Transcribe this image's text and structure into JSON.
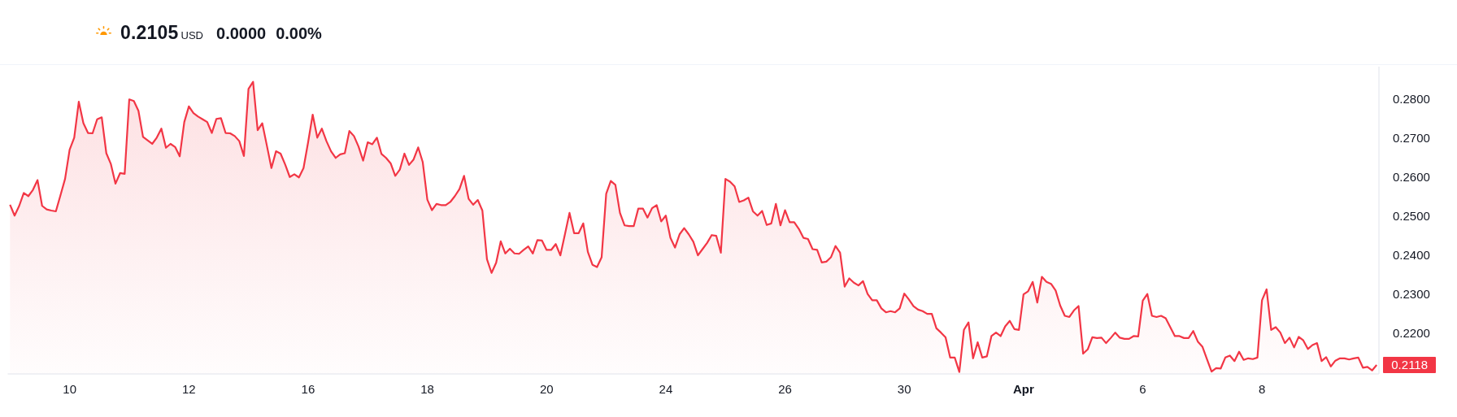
{
  "chart_data": {
    "type": "area",
    "title": "0.2105",
    "annotations": [
      "USD",
      "0.0000",
      "0.00%"
    ],
    "categories": [
      null,
      null,
      null,
      null,
      null,
      null,
      null,
      null,
      null,
      null,
      null,
      null,
      null,
      "10",
      null,
      null,
      null,
      null,
      null,
      null,
      null,
      null,
      null,
      null,
      null,
      null,
      null,
      null,
      null,
      null,
      null,
      null,
      null,
      null,
      null,
      null,
      null,
      null,
      null,
      "12",
      null,
      null,
      null,
      null,
      null,
      null,
      null,
      null,
      null,
      null,
      null,
      null,
      null,
      null,
      null,
      null,
      null,
      null,
      null,
      null,
      null,
      null,
      null,
      null,
      null,
      "16",
      null,
      null,
      null,
      null,
      null,
      null,
      null,
      null,
      null,
      null,
      null,
      null,
      null,
      null,
      null,
      null,
      null,
      null,
      null,
      null,
      null,
      null,
      null,
      null,
      null,
      "18",
      null,
      null,
      null,
      null,
      null,
      null,
      null,
      null,
      null,
      null,
      null,
      null,
      null,
      null,
      null,
      null,
      null,
      null,
      null,
      null,
      null,
      null,
      null,
      null,
      null,
      "20",
      null,
      null,
      null,
      null,
      null,
      null,
      null,
      null,
      null,
      null,
      null,
      null,
      null,
      null,
      null,
      null,
      null,
      null,
      null,
      null,
      null,
      null,
      null,
      null,
      null,
      "24",
      null,
      null,
      null,
      null,
      null,
      null,
      null,
      null,
      null,
      null,
      null,
      null,
      null,
      null,
      null,
      null,
      null,
      null,
      null,
      null,
      null,
      null,
      null,
      null,
      null,
      "26",
      null,
      null,
      null,
      null,
      null,
      null,
      null,
      null,
      null,
      null,
      null,
      null,
      null,
      null,
      null,
      null,
      null,
      null,
      null,
      null,
      null,
      null,
      null,
      null,
      null,
      "30",
      null,
      null,
      null,
      null,
      null,
      null,
      null,
      null,
      null,
      null,
      null,
      null,
      null,
      null,
      null,
      null,
      null,
      null,
      null,
      null,
      null,
      null,
      null,
      null,
      null,
      "Apr",
      null,
      null,
      null,
      null,
      null,
      null,
      null,
      null,
      null,
      null,
      null,
      null,
      null,
      null,
      null,
      null,
      null,
      null,
      null,
      null,
      null,
      null,
      null,
      null,
      null,
      "6",
      null,
      null,
      null,
      null,
      null,
      null,
      null,
      null,
      null,
      null,
      null,
      null,
      null,
      null,
      null,
      null,
      null,
      null,
      null,
      null,
      null,
      null,
      null,
      null,
      null,
      "8",
      null,
      null,
      null,
      null,
      null,
      null,
      null,
      null,
      null,
      null,
      null,
      null,
      null,
      null,
      null,
      null,
      null,
      null,
      null,
      null,
      null,
      null,
      null,
      null,
      null
    ],
    "series": [
      {
        "color": "#f23645",
        "values": [
          0.2529,
          0.2501,
          0.2526,
          0.2559,
          0.2551,
          0.2567,
          0.2592,
          0.2526,
          0.2517,
          0.2514,
          0.2512,
          0.2553,
          0.2595,
          0.267,
          0.2701,
          0.2793,
          0.2738,
          0.2713,
          0.2712,
          0.2748,
          0.2753,
          0.2661,
          0.2633,
          0.2583,
          0.261,
          0.2608,
          0.2799,
          0.2795,
          0.277,
          0.2703,
          0.2694,
          0.2685,
          0.2701,
          0.2724,
          0.2675,
          0.2685,
          0.2677,
          0.2653,
          0.2741,
          0.2781,
          0.2764,
          0.2755,
          0.2748,
          0.2741,
          0.2713,
          0.2749,
          0.2751,
          0.2713,
          0.2712,
          0.2705,
          0.2692,
          0.2654,
          0.2826,
          0.2844,
          0.272,
          0.2738,
          0.2681,
          0.2623,
          0.2666,
          0.266,
          0.2632,
          0.26,
          0.2607,
          0.2599,
          0.2623,
          0.2689,
          0.276,
          0.2701,
          0.2724,
          0.2692,
          0.2666,
          0.2649,
          0.2658,
          0.2661,
          0.2718,
          0.2705,
          0.2678,
          0.2642,
          0.2689,
          0.2684,
          0.2701,
          0.2659,
          0.2649,
          0.2635,
          0.2603,
          0.2619,
          0.266,
          0.2631,
          0.2645,
          0.2676,
          0.2638,
          0.2542,
          0.2515,
          0.2531,
          0.2528,
          0.2528,
          0.2536,
          0.2551,
          0.2569,
          0.2603,
          0.2544,
          0.2529,
          0.2541,
          0.2514,
          0.2389,
          0.2354,
          0.238,
          0.2435,
          0.2404,
          0.2416,
          0.2404,
          0.2403,
          0.2413,
          0.2422,
          0.2404,
          0.2438,
          0.2437,
          0.2413,
          0.2413,
          0.2428,
          0.2399,
          0.2453,
          0.2508,
          0.2456,
          0.2456,
          0.2481,
          0.2408,
          0.2375,
          0.2369,
          0.2394,
          0.2557,
          0.259,
          0.258,
          0.2508,
          0.2476,
          0.2474,
          0.2474,
          0.2519,
          0.2519,
          0.2496,
          0.252,
          0.2528,
          0.2486,
          0.2501,
          0.2444,
          0.2419,
          0.2453,
          0.2469,
          0.2453,
          0.2434,
          0.2399,
          0.2415,
          0.2431,
          0.2451,
          0.2449,
          0.2406,
          0.2595,
          0.2588,
          0.2576,
          0.2536,
          0.254,
          0.2547,
          0.2512,
          0.2501,
          0.2513,
          0.2477,
          0.2481,
          0.2531,
          0.2476,
          0.2515,
          0.2484,
          0.2484,
          0.2467,
          0.2444,
          0.2441,
          0.2415,
          0.2413,
          0.2381,
          0.2383,
          0.2394,
          0.2423,
          0.2406,
          0.2319,
          0.234,
          0.2329,
          0.2322,
          0.2333,
          0.23,
          0.2284,
          0.2284,
          0.2263,
          0.2253,
          0.2256,
          0.2253,
          0.2263,
          0.2301,
          0.2286,
          0.2269,
          0.226,
          0.2256,
          0.2249,
          0.2249,
          0.2212,
          0.2201,
          0.2189,
          0.2137,
          0.2137,
          0.21,
          0.2208,
          0.2227,
          0.2135,
          0.2176,
          0.2137,
          0.214,
          0.2192,
          0.2201,
          0.2192,
          0.2217,
          0.2231,
          0.221,
          0.2208,
          0.2299,
          0.2307,
          0.2331,
          0.2278,
          0.2344,
          0.2331,
          0.2326,
          0.2309,
          0.227,
          0.2244,
          0.2241,
          0.2258,
          0.2269,
          0.2147,
          0.2158,
          0.2189,
          0.2187,
          0.2188,
          0.2174,
          0.2187,
          0.2201,
          0.2188,
          0.2185,
          0.2185,
          0.2192,
          0.2191,
          0.2283,
          0.23,
          0.2244,
          0.2241,
          0.2244,
          0.2238,
          0.2215,
          0.2192,
          0.2192,
          0.2187,
          0.2187,
          0.2205,
          0.2178,
          0.2165,
          0.2133,
          0.2101,
          0.211,
          0.2109,
          0.2137,
          0.2142,
          0.2128,
          0.2152,
          0.2131,
          0.2135,
          0.2133,
          0.2137,
          0.2284,
          0.2312,
          0.2208,
          0.2215,
          0.2201,
          0.2174,
          0.2188,
          0.2163,
          0.219,
          0.2181,
          0.2159,
          0.2169,
          0.2174,
          0.2128,
          0.2138,
          0.2114,
          0.2129,
          0.2135,
          0.2135,
          0.2132,
          0.2135,
          0.2137,
          0.2111,
          0.2113,
          0.2104,
          0.2118
        ],
        "value_labels": [
          null,
          null,
          null,
          null,
          null,
          null,
          null,
          null,
          null,
          null,
          null,
          null,
          null,
          null,
          null,
          null,
          null,
          null,
          null,
          null,
          null,
          null,
          null,
          null,
          null,
          null,
          null,
          null,
          null,
          null,
          null,
          null,
          null,
          null,
          null,
          null,
          null,
          null,
          null,
          null,
          null,
          null,
          null,
          null,
          null,
          null,
          null,
          null,
          null,
          null,
          null,
          null,
          null,
          null,
          null,
          null,
          null,
          null,
          null,
          null,
          null,
          null,
          null,
          null,
          null,
          null,
          null,
          null,
          null,
          null,
          null,
          null,
          null,
          null,
          null,
          null,
          null,
          null,
          null,
          null,
          null,
          null,
          null,
          null,
          null,
          null,
          null,
          null,
          null,
          null,
          null,
          null,
          null,
          null,
          null,
          null,
          null,
          null,
          null,
          null,
          null,
          null,
          null,
          null,
          null,
          null,
          null,
          null,
          null,
          null,
          null,
          null,
          null,
          null,
          null,
          null,
          null,
          null,
          null,
          null,
          null,
          null,
          null,
          null,
          null,
          null,
          null,
          null,
          null,
          null,
          null,
          null,
          null,
          null,
          null,
          null,
          null,
          null,
          null,
          null,
          null,
          null,
          null,
          null,
          null,
          null,
          null,
          null,
          null,
          null,
          null,
          null,
          null,
          null,
          null,
          null,
          null,
          null,
          null,
          null,
          null,
          null,
          null,
          null,
          null,
          null,
          null,
          null,
          null,
          null,
          null,
          null,
          null,
          null,
          null,
          null,
          null,
          null,
          null,
          null,
          null,
          null,
          null,
          null,
          null,
          null,
          null,
          null,
          null,
          null,
          null,
          null,
          null,
          null,
          null,
          null,
          null,
          null,
          null,
          null,
          null,
          null,
          null,
          null,
          null,
          null,
          null,
          null,
          null,
          null,
          null,
          null,
          null,
          null,
          null,
          null,
          null,
          null,
          null,
          null,
          null,
          null,
          null,
          null,
          null,
          null,
          null,
          null,
          null,
          null,
          null,
          null,
          null,
          null,
          null,
          null,
          null,
          null,
          null,
          null,
          null,
          null,
          null,
          null,
          null,
          null,
          null,
          null,
          null,
          null,
          null,
          null,
          null,
          null,
          null,
          null,
          null,
          null,
          null,
          null,
          null,
          null,
          null,
          null,
          null,
          null,
          null,
          null,
          null,
          null,
          null,
          null,
          null,
          null,
          null,
          null,
          null,
          null,
          null,
          null,
          null,
          null,
          null,
          null,
          null,
          null,
          null,
          null,
          null,
          null,
          null,
          null,
          null,
          null,
          null,
          null,
          null,
          null,
          "0.2118"
        ]
      }
    ],
    "ylim": [
      0.2095,
      0.2883
    ],
    "yticks": [
      {
        "value": 0.22,
        "label": "0.2200"
      },
      {
        "value": 0.23,
        "label": "0.2300"
      },
      {
        "value": 0.24,
        "label": "0.2400"
      },
      {
        "value": 0.25,
        "label": "0.2500"
      },
      {
        "value": 0.26,
        "label": "0.2600"
      },
      {
        "value": 0.27,
        "label": "0.2700"
      },
      {
        "value": 0.28,
        "label": "0.2800"
      }
    ]
  }
}
